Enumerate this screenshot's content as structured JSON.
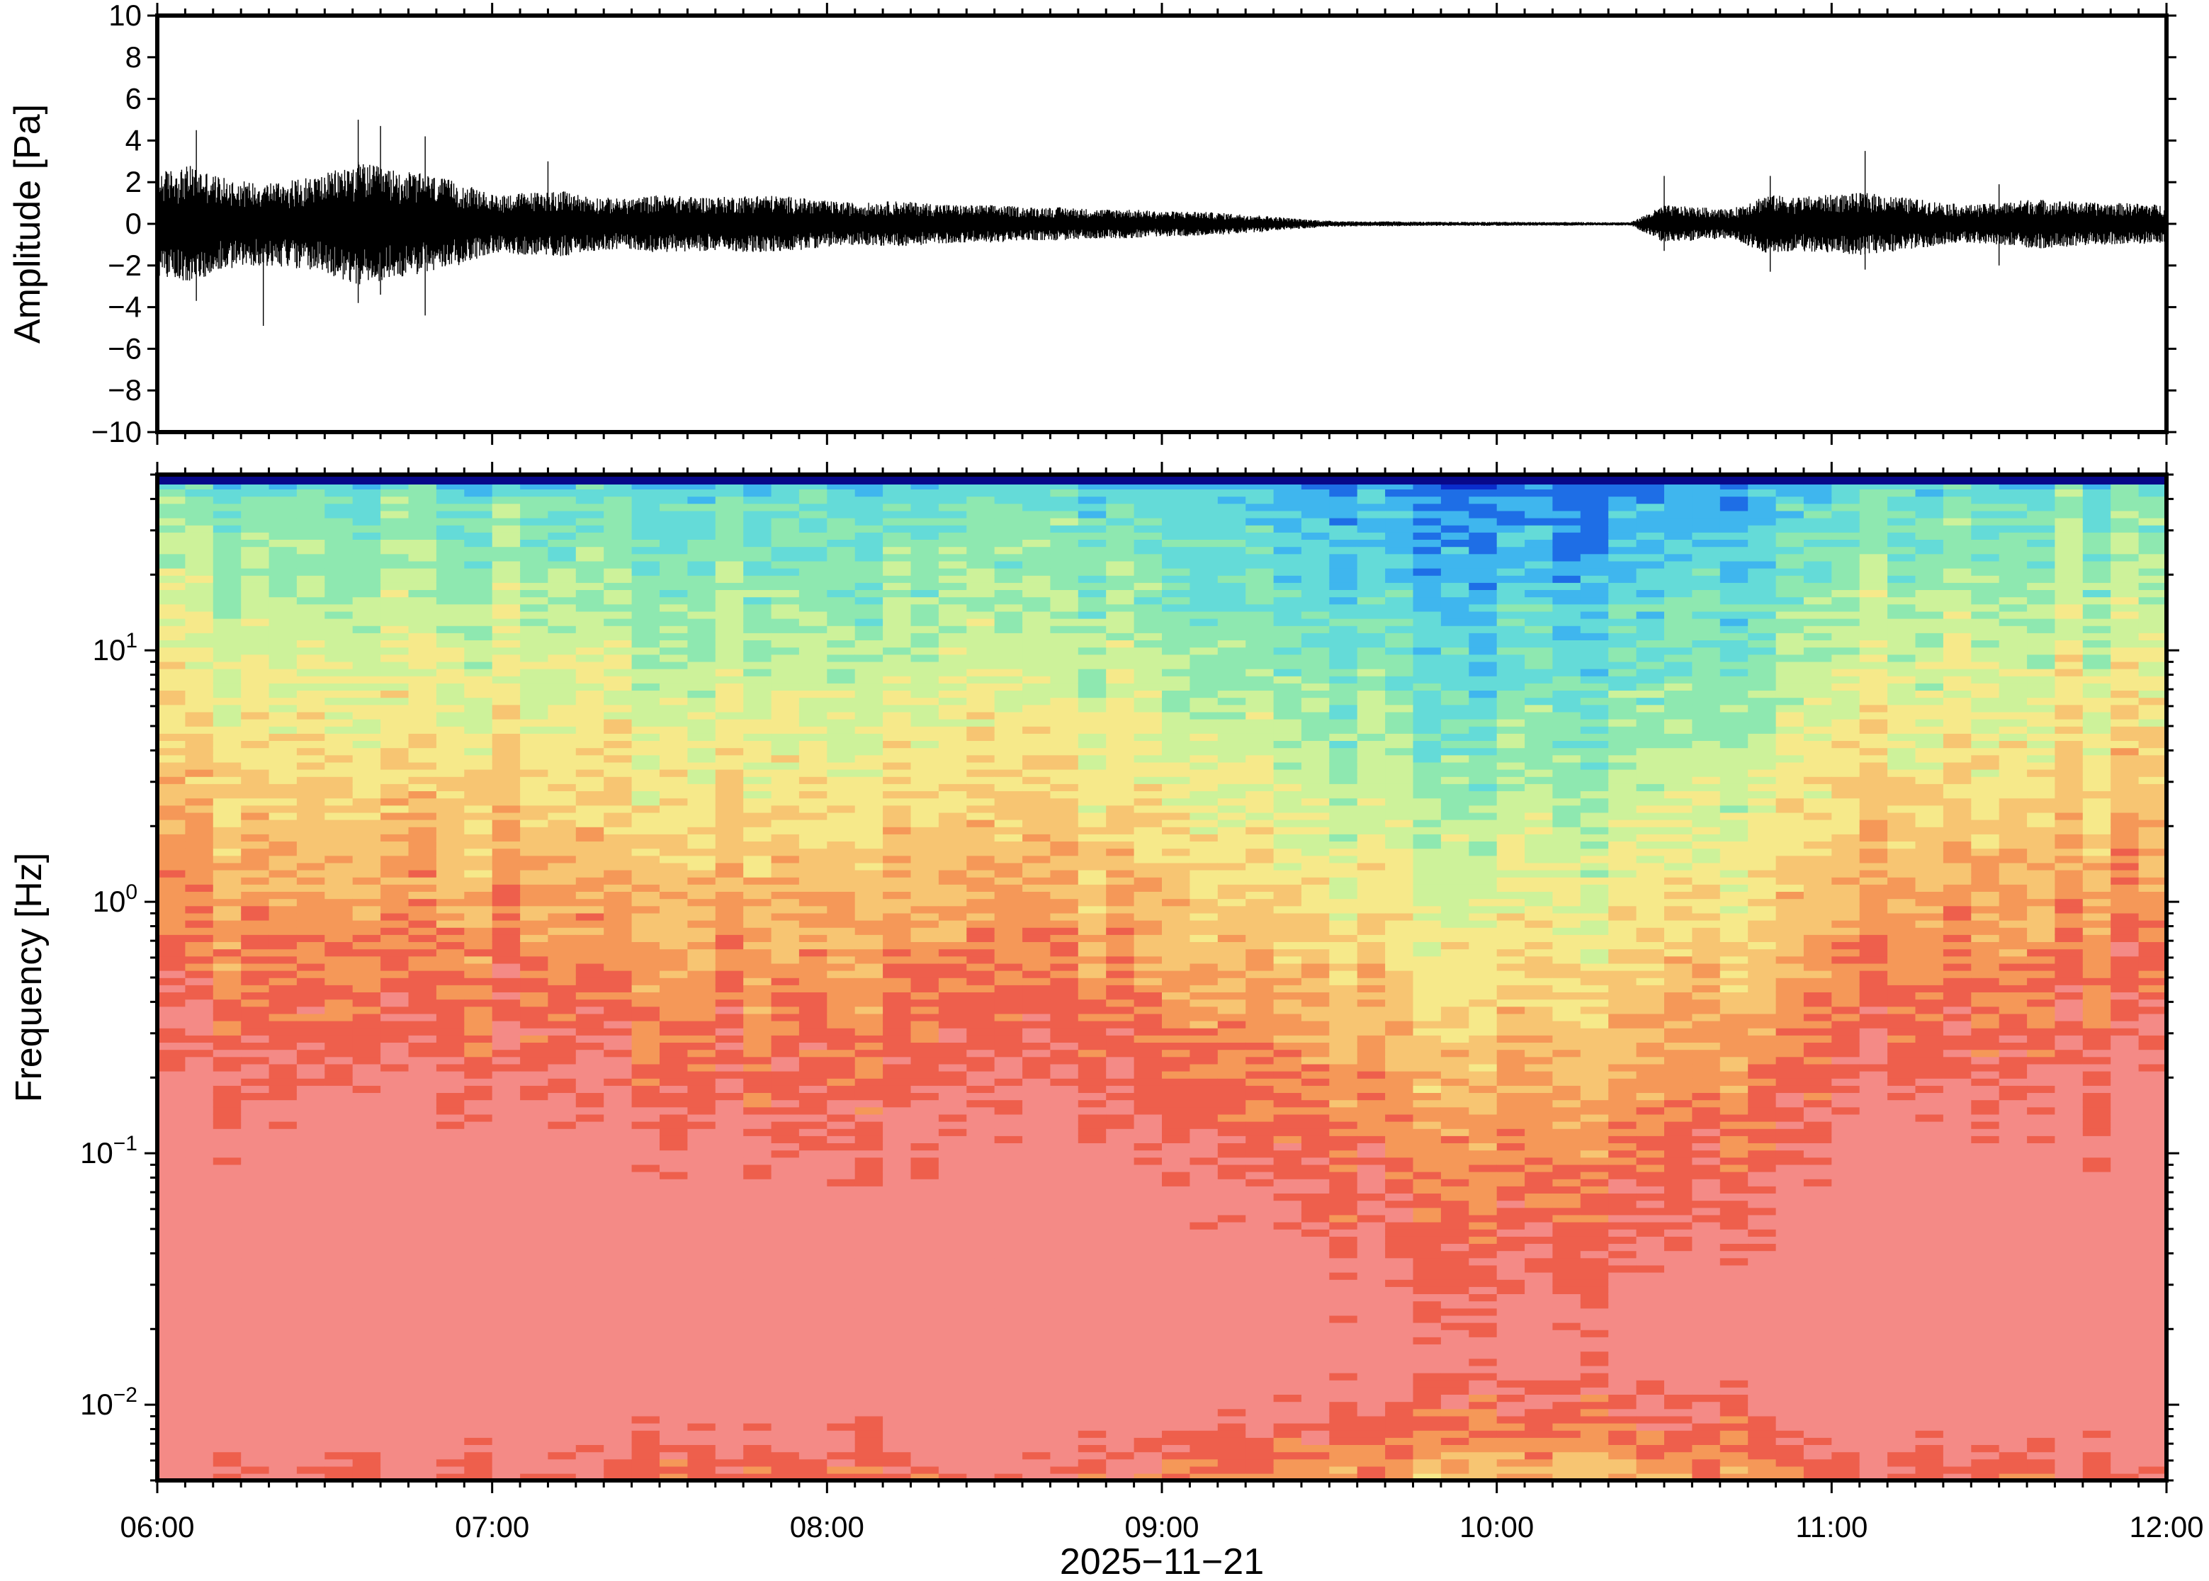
{
  "chart_data": [
    {
      "type": "line",
      "panel": "waveform",
      "ylabel": "Amplitude [Pa]",
      "ylim": [
        -10,
        10
      ],
      "yticks": [
        10,
        8,
        6,
        4,
        2,
        0,
        -2,
        -4,
        -6,
        -8,
        -10
      ],
      "ytick_labels": [
        "10",
        "8",
        "6",
        "4",
        "2",
        "0",
        "−2",
        "−4",
        "−6",
        "−8",
        "−10"
      ],
      "x_range": [
        "06:00",
        "12:00"
      ],
      "envelope": {
        "time_hours": [
          6.0,
          6.1,
          6.2,
          6.3,
          6.4,
          6.5,
          6.6,
          6.7,
          6.8,
          6.9,
          7.0,
          7.1,
          7.2,
          7.3,
          7.4,
          7.5,
          7.6,
          7.7,
          7.8,
          7.9,
          8.0,
          8.1,
          8.2,
          8.3,
          8.4,
          8.5,
          8.6,
          8.7,
          8.8,
          8.9,
          9.0,
          9.1,
          9.2,
          9.3,
          9.4,
          9.5,
          9.6,
          9.7,
          9.8,
          9.9,
          10.0,
          10.1,
          10.2,
          10.3,
          10.4,
          10.5,
          10.6,
          10.7,
          10.8,
          10.9,
          11.0,
          11.1,
          11.2,
          11.3,
          11.4,
          11.5,
          11.6,
          11.7,
          11.8,
          11.9,
          12.0
        ],
        "amplitude_pa": [
          2.5,
          2.8,
          2.2,
          2.0,
          2.1,
          2.4,
          3.0,
          2.6,
          2.4,
          2.0,
          1.4,
          1.5,
          1.6,
          1.3,
          1.2,
          1.4,
          1.3,
          1.3,
          1.4,
          1.3,
          1.1,
          1.0,
          1.1,
          1.0,
          0.9,
          0.9,
          0.8,
          0.8,
          0.7,
          0.7,
          0.6,
          0.6,
          0.5,
          0.4,
          0.25,
          0.15,
          0.12,
          0.12,
          0.1,
          0.1,
          0.1,
          0.09,
          0.09,
          0.08,
          0.08,
          0.9,
          0.8,
          0.7,
          1.4,
          1.3,
          1.4,
          1.5,
          1.3,
          1.1,
          0.9,
          1.0,
          1.2,
          1.1,
          1.0,
          1.0,
          0.9
        ]
      },
      "peaks": [
        {
          "time": "06:07",
          "max": 4.5,
          "min": -3.7
        },
        {
          "time": "06:19",
          "max": 1.5,
          "min": -4.9
        },
        {
          "time": "06:36",
          "max": 5.0,
          "min": -3.8
        },
        {
          "time": "06:40",
          "max": 4.7,
          "min": -3.4
        },
        {
          "time": "06:48",
          "max": 4.2,
          "min": -4.4
        },
        {
          "time": "07:10",
          "max": 3.0,
          "min": -1.2
        },
        {
          "time": "10:30",
          "max": 2.3,
          "min": -1.3
        },
        {
          "time": "10:49",
          "max": 2.3,
          "min": -2.3
        },
        {
          "time": "11:06",
          "max": 3.5,
          "min": -2.2
        },
        {
          "time": "11:30",
          "max": 1.9,
          "min": -2.0
        }
      ]
    },
    {
      "type": "heatmap",
      "panel": "spectrogram",
      "ylabel": "Frequency [Hz]",
      "yscale": "log",
      "ylim": [
        0.005,
        50
      ],
      "ytick_labels": [
        {
          "mantissa": "10",
          "exponent": "1"
        },
        {
          "mantissa": "10",
          "exponent": "0"
        },
        {
          "mantissa": "10",
          "exponent": "−1"
        },
        {
          "mantissa": "10",
          "exponent": "−2"
        }
      ],
      "yticks_hz": [
        10,
        1,
        0.1,
        0.01
      ],
      "colormap": [
        "#08088a",
        "#0a2ccc",
        "#1e6ee6",
        "#3fb6ee",
        "#64dbd8",
        "#8ee8b0",
        "#cdf29a",
        "#f6e98a",
        "#f7c572",
        "#f59858",
        "#ee5f4c",
        "#f48a86"
      ],
      "time_columns": [
        "06:00",
        "06:30",
        "07:00",
        "07:30",
        "08:00",
        "08:30",
        "09:00",
        "09:30",
        "10:00",
        "10:30",
        "11:00",
        "11:30",
        "12:00"
      ],
      "energy_boundary_hz": [
        0.8,
        0.9,
        0.7,
        0.55,
        0.5,
        0.5,
        0.4,
        0.15,
        0.08,
        0.12,
        0.7,
        0.8,
        0.7
      ],
      "xlabel": "2025−11−21",
      "xtick_labels": [
        "06:00",
        "07:00",
        "08:00",
        "09:00",
        "10:00",
        "11:00",
        "12:00"
      ],
      "xlim": [
        "06:00",
        "12:00"
      ]
    }
  ]
}
